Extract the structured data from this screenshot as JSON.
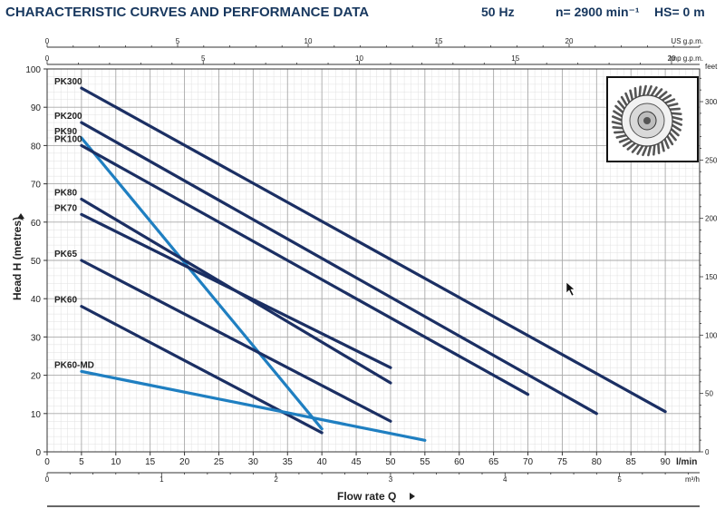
{
  "header": {
    "title": "CHARACTERISTIC CURVES AND PERFORMANCE DATA",
    "frequency": "50 Hz",
    "speed": "n= 2900 min⁻¹",
    "suction_head": "HS= 0 m"
  },
  "colors": {
    "standard_curve": "#1b2f63",
    "highlight_curve": "#1f7fc1",
    "title": "#17375e",
    "grid": "#cfcfcf"
  },
  "chart_data": {
    "type": "line",
    "xlabel": "Flow rate Q",
    "ylabel": "Head H (metres)",
    "x_unit": "l/min",
    "xlim": [
      0,
      95
    ],
    "ylim": [
      0,
      100
    ],
    "grid": true,
    "x_ticks": [
      0,
      5,
      10,
      15,
      20,
      25,
      30,
      35,
      40,
      45,
      50,
      55,
      60,
      65,
      70,
      75,
      80,
      85,
      90
    ],
    "y_ticks": [
      0,
      10,
      20,
      30,
      40,
      50,
      60,
      70,
      80,
      90,
      100
    ],
    "secondary_axes": {
      "top_us_gpm": {
        "label": "US g.p.m.",
        "max": 25,
        "ticks": [
          0,
          5,
          10,
          15,
          20
        ]
      },
      "top_imp_gpm": {
        "label": "Imp g.p.m.",
        "max": 20.9,
        "ticks": [
          0,
          5,
          10,
          15,
          20
        ]
      },
      "bottom_m3h": {
        "label": "m³/h",
        "max": 5.7,
        "ticks": [
          0,
          1,
          2,
          3,
          4,
          5
        ]
      },
      "right_feet": {
        "label": "feet",
        "max": 328,
        "ticks": [
          0,
          50,
          100,
          150,
          200,
          250,
          300
        ]
      }
    },
    "series": [
      {
        "name": "PK300",
        "style": "standard",
        "x": [
          5,
          90
        ],
        "y": [
          95,
          10.5
        ]
      },
      {
        "name": "PK200",
        "style": "standard",
        "x": [
          5,
          80
        ],
        "y": [
          86,
          10
        ]
      },
      {
        "name": "PK90",
        "style": "highlight",
        "x": [
          5,
          40
        ],
        "y": [
          82,
          6
        ]
      },
      {
        "name": "PK100",
        "style": "standard",
        "x": [
          5,
          70
        ],
        "y": [
          80,
          15
        ]
      },
      {
        "name": "PK80",
        "style": "standard",
        "x": [
          5,
          50
        ],
        "y": [
          66,
          18
        ]
      },
      {
        "name": "PK70",
        "style": "standard",
        "x": [
          5,
          50
        ],
        "y": [
          62,
          22
        ]
      },
      {
        "name": "PK65",
        "style": "standard",
        "x": [
          5,
          50
        ],
        "y": [
          50,
          8
        ]
      },
      {
        "name": "PK60",
        "style": "standard",
        "x": [
          5,
          40
        ],
        "y": [
          38,
          5
        ]
      },
      {
        "name": "PK60-MD",
        "style": "highlight",
        "x": [
          5,
          55
        ],
        "y": [
          21,
          3
        ]
      }
    ]
  }
}
